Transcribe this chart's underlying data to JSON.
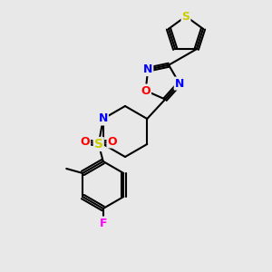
{
  "bg_color": "#e8e8e8",
  "atom_colors": {
    "C": "#000000",
    "N": "#0000ff",
    "O": "#ff0000",
    "S_thio": "#cccc00",
    "S_sulfonyl": "#cccc00",
    "F": "#ff00ff"
  },
  "bond_color": "#000000",
  "figsize": [
    3.0,
    3.0
  ],
  "dpi": 100
}
